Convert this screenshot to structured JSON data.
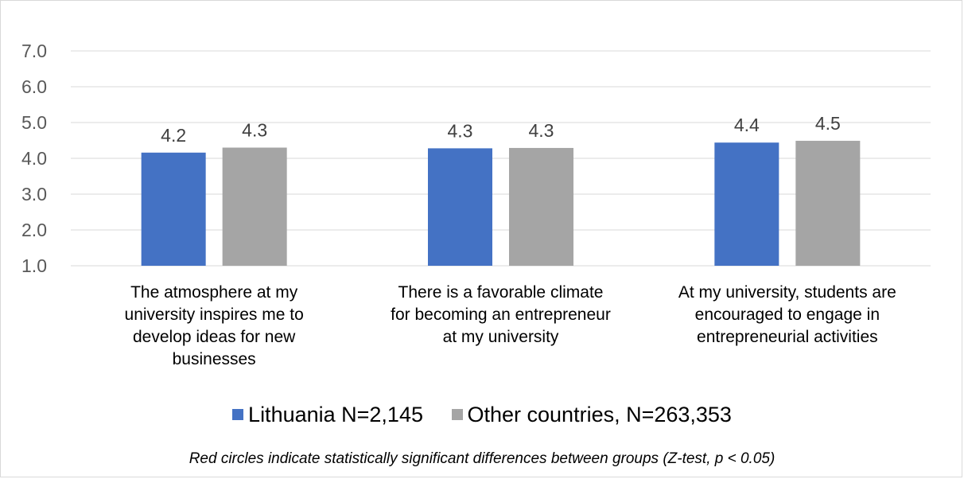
{
  "chart_data": {
    "type": "bar",
    "title": "",
    "xlabel": "",
    "ylabel": "",
    "ylim": [
      1.0,
      7.0
    ],
    "yticks": [
      "1.0",
      "2.0",
      "3.0",
      "4.0",
      "5.0",
      "6.0",
      "7.0"
    ],
    "grid": true,
    "legend_position": "bottom",
    "categories": [
      [
        "The atmosphere at my",
        "university inspires me to",
        "develop ideas for new",
        "businesses"
      ],
      [
        "There is a favorable climate",
        "for becoming an entrepreneur",
        "at my university"
      ],
      [
        "At my university, students are",
        "encouraged to engage in",
        "entrepreneurial activities"
      ]
    ],
    "series": [
      {
        "name": "Lithuania N=2,145",
        "color": "#4472c4",
        "values": [
          4.16,
          4.28,
          4.44
        ],
        "labels": [
          "4.2",
          "4.3",
          "4.4"
        ]
      },
      {
        "name": "Other countries, N=263,353",
        "color": "#a5a5a5",
        "values": [
          4.3,
          4.29,
          4.49
        ],
        "labels": [
          "4.3",
          "4.3",
          "4.5"
        ]
      }
    ],
    "gridline_color": "#d9d9d9",
    "tick_color": "#595959"
  },
  "legend": {
    "lithuania": "Lithuania N=2,145",
    "other": "Other countries, N=263,353"
  },
  "footnote": "Red circles indicate statistically significant differences between groups (Z-test, p < 0.05)"
}
